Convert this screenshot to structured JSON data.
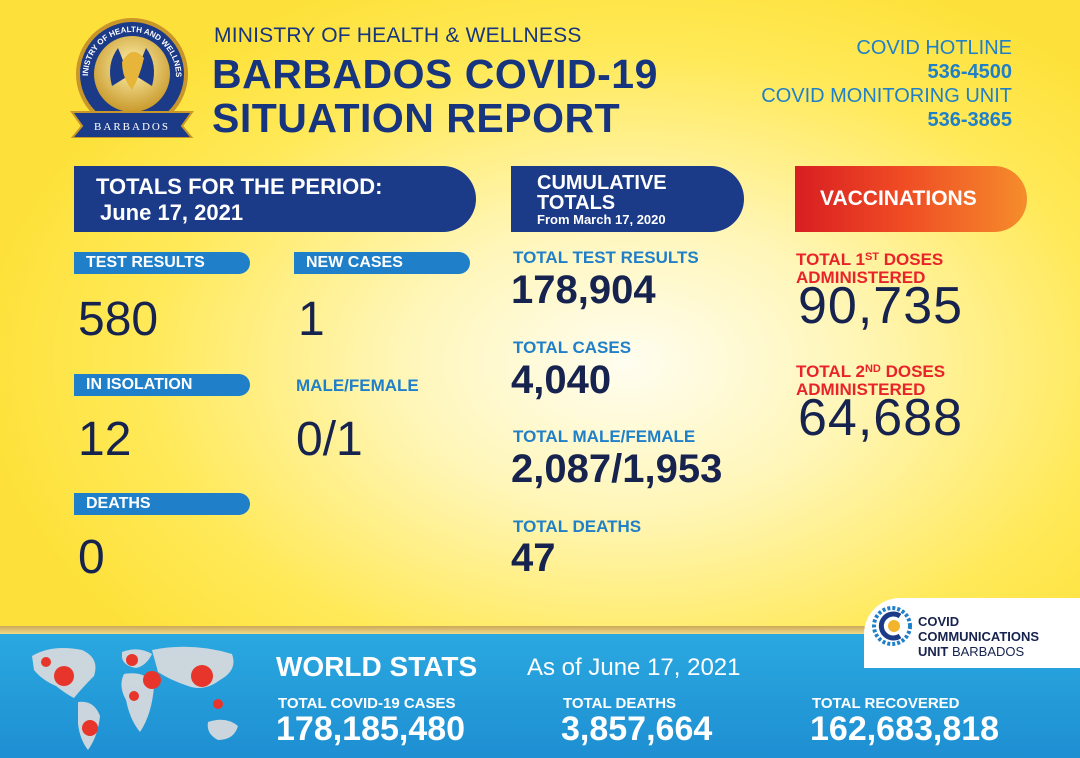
{
  "header": {
    "ministry": "MINISTRY OF HEALTH & WELLNESS",
    "title_line1": "BARBADOS COVID-19",
    "title_line2": "SITUATION REPORT",
    "logo_text_top": "MINISTRY OF HEALTH AND WELLNESS",
    "logo_text_bottom": "BARBADOS",
    "hotline_label": "COVID HOTLINE",
    "hotline_number": "536-4500",
    "monitoring_label": "COVID MONITORING UNIT",
    "monitoring_number": "536-3865"
  },
  "period": {
    "heading": "TOTALS FOR THE PERIOD:",
    "date": "June 17, 2021",
    "test_results_label": "TEST RESULTS",
    "test_results": "580",
    "new_cases_label": "NEW CASES",
    "new_cases": "1",
    "isolation_label": "IN ISOLATION",
    "isolation": "12",
    "male_female_label": "MALE/FEMALE",
    "male_female": "0/1",
    "deaths_label": "DEATHS",
    "deaths": "0"
  },
  "cumulative": {
    "heading_line1": "CUMULATIVE",
    "heading_line2": "TOTALS",
    "since": "From March 17, 2020",
    "tests_label": "TOTAL TEST RESULTS",
    "tests": "178,904",
    "cases_label": "TOTAL CASES",
    "cases": "4,040",
    "mf_label": "TOTAL MALE/FEMALE",
    "mf": "2,087/1,953",
    "deaths_label": "TOTAL DEATHS",
    "deaths": "47"
  },
  "vaccinations": {
    "heading": "VACCINATIONS",
    "first_prefix": "TOTAL 1",
    "first_sup": "ST",
    "first_suffix": " DOSES",
    "first_line2": "ADMINISTERED",
    "first_value": "90,735",
    "second_prefix": "TOTAL 2",
    "second_sup": "ND",
    "second_suffix": " DOSES",
    "second_line2": "ADMINISTERED",
    "second_value": "64,688"
  },
  "world": {
    "title": "WORLD STATS",
    "as_of": "As of June 17, 2021",
    "cases_label": "TOTAL COVID-19 CASES",
    "cases": "178,185,480",
    "deaths_label": "TOTAL DEATHS",
    "deaths": "3,857,664",
    "recovered_label": "TOTAL RECOVERED",
    "recovered": "162,683,818"
  },
  "ccu": {
    "line1": "COVID",
    "line2": "COMMUNICATIONS",
    "line3_bold": "UNIT",
    "line3_light": " BARBADOS"
  },
  "colors": {
    "navy": "#1b3a88",
    "blue": "#1f7fc8",
    "red": "#e8242a",
    "yellow": "#ffe957"
  }
}
